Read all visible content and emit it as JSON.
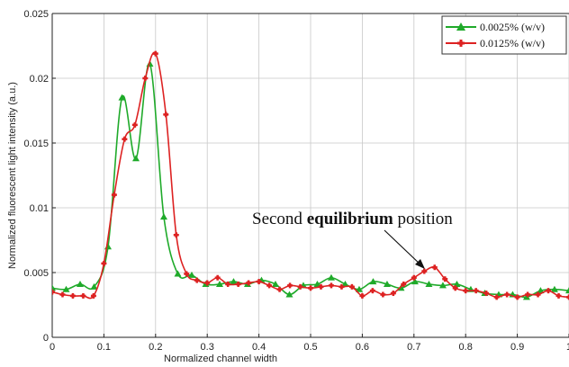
{
  "chart_data": {
    "type": "line",
    "xlabel": "Normalized channel width",
    "ylabel": "Normalized fluorescent light intensity (a.u.)",
    "xlim": [
      0,
      1
    ],
    "ylim": [
      0,
      0.025
    ],
    "grid": true,
    "legend_position": "top-right",
    "x_ticks": [
      "0",
      "0.1",
      "0.2",
      "0.3",
      "0.4",
      "0.5",
      "0.6",
      "0.7",
      "0.8",
      "0.9",
      "1"
    ],
    "y_ticks": [
      "0",
      "0.005",
      "0.01",
      "0.015",
      "0.02",
      "0.025"
    ],
    "colors": {
      "series_1": "#1faa2a",
      "series_2": "#dd2222"
    },
    "series": [
      {
        "name": "0.0025% (w/v)",
        "marker": "triangle",
        "x": [
          0,
          0.027,
          0.054,
          0.081,
          0.108,
          0.135,
          0.162,
          0.189,
          0.216,
          0.243,
          0.27,
          0.297,
          0.324,
          0.351,
          0.378,
          0.405,
          0.432,
          0.459,
          0.486,
          0.513,
          0.54,
          0.567,
          0.594,
          0.621,
          0.648,
          0.675,
          0.702,
          0.729,
          0.756,
          0.783,
          0.81,
          0.837,
          0.864,
          0.891,
          0.918,
          0.945,
          0.972,
          1.0
        ],
        "y": [
          0.0038,
          0.0037,
          0.0041,
          0.0039,
          0.007,
          0.0185,
          0.0138,
          0.0211,
          0.0093,
          0.0049,
          0.0048,
          0.0041,
          0.0041,
          0.0043,
          0.0041,
          0.0044,
          0.0041,
          0.0033,
          0.004,
          0.0041,
          0.0046,
          0.0041,
          0.0037,
          0.0043,
          0.0041,
          0.0038,
          0.0043,
          0.0041,
          0.004,
          0.0041,
          0.0037,
          0.0034,
          0.0033,
          0.0033,
          0.0031,
          0.0036,
          0.0037,
          0.0036
        ]
      },
      {
        "name": "0.0125% (w/v)",
        "marker": "star",
        "x": [
          0,
          0.02,
          0.04,
          0.06,
          0.08,
          0.1,
          0.12,
          0.14,
          0.16,
          0.18,
          0.2,
          0.22,
          0.24,
          0.26,
          0.28,
          0.3,
          0.32,
          0.34,
          0.36,
          0.38,
          0.4,
          0.42,
          0.44,
          0.46,
          0.48,
          0.5,
          0.52,
          0.54,
          0.56,
          0.58,
          0.6,
          0.62,
          0.64,
          0.66,
          0.68,
          0.7,
          0.72,
          0.74,
          0.76,
          0.78,
          0.8,
          0.82,
          0.84,
          0.86,
          0.88,
          0.9,
          0.92,
          0.94,
          0.96,
          0.98,
          1.0
        ],
        "y": [
          0.0035,
          0.0033,
          0.0032,
          0.0032,
          0.0032,
          0.0057,
          0.011,
          0.0153,
          0.0164,
          0.02,
          0.0219,
          0.0172,
          0.0079,
          0.0049,
          0.0044,
          0.0042,
          0.0046,
          0.0041,
          0.0041,
          0.0042,
          0.0043,
          0.004,
          0.0037,
          0.004,
          0.0039,
          0.0038,
          0.0039,
          0.004,
          0.0039,
          0.0039,
          0.0032,
          0.0036,
          0.0033,
          0.0034,
          0.0041,
          0.0046,
          0.0051,
          0.0054,
          0.0045,
          0.0038,
          0.0036,
          0.0036,
          0.0034,
          0.0031,
          0.0033,
          0.0031,
          0.0033,
          0.0033,
          0.0036,
          0.0032,
          0.0031
        ]
      }
    ],
    "annotation": {
      "text_normal_1": "Second ",
      "text_bold": "equilibrium",
      "text_normal_2": " position",
      "x": 0.715,
      "y": 0.0052
    }
  }
}
